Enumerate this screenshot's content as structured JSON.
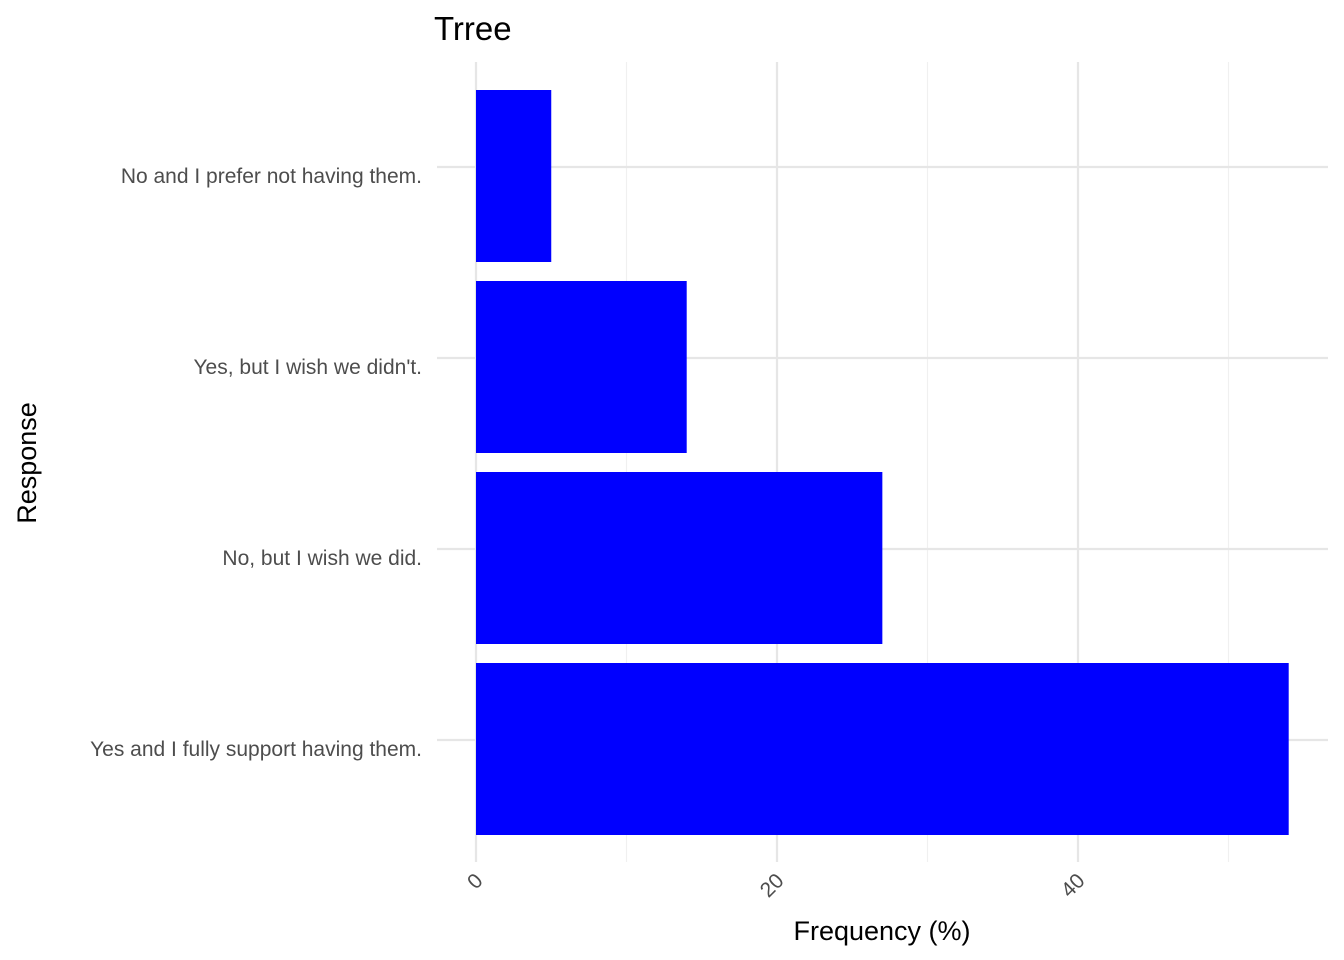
{
  "chart_data": {
    "type": "bar",
    "orientation": "horizontal",
    "title": "Trree",
    "xlabel": "Frequency (%)",
    "ylabel": "Response",
    "categories": [
      "No and I prefer not having them.",
      "Yes, but I wish we didn't.",
      "No, but I wish we did.",
      "Yes and I fully support having them."
    ],
    "values": [
      5,
      14,
      27,
      54
    ],
    "xlim": [
      0,
      56.5
    ],
    "x_ticks": [
      0,
      20,
      40
    ],
    "x_tick_labels": [
      "0",
      "20",
      "40"
    ],
    "x_minor_ticks": [
      10,
      30,
      50
    ],
    "grid": true,
    "bar_color": "#0000ff",
    "legend": "none"
  }
}
